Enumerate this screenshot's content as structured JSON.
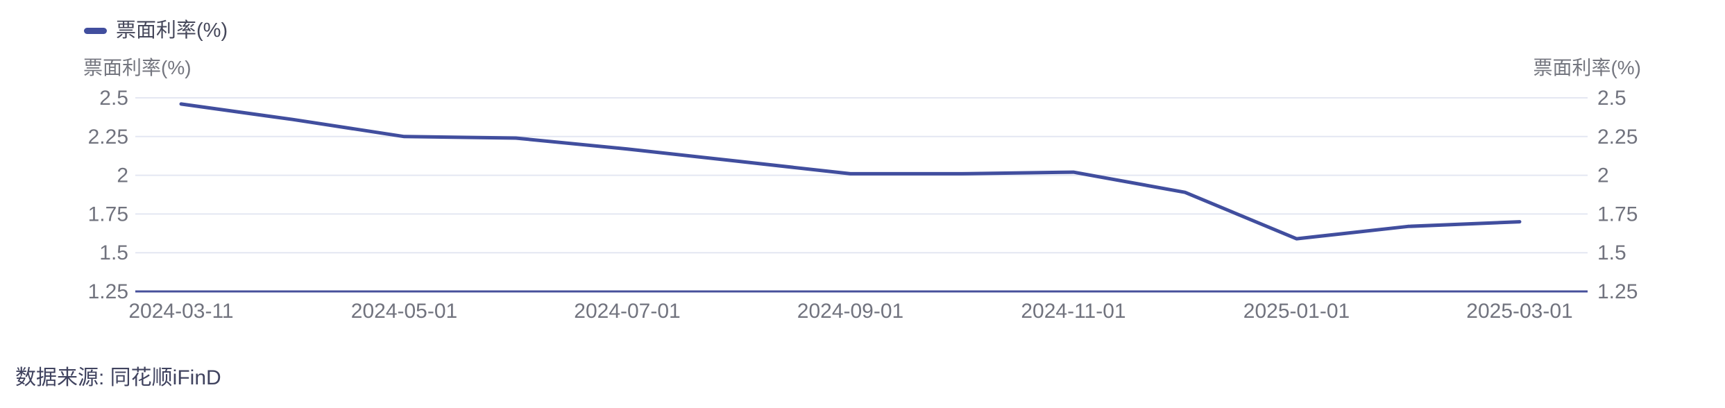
{
  "legend": {
    "label": "票面利率(%)"
  },
  "axis_titles": {
    "left": "票面利率(%)",
    "right": "票面利率(%)"
  },
  "source": {
    "text": "数据来源: 同花顺iFinD"
  },
  "chart_data": {
    "type": "line",
    "title": "",
    "legend": "票面利率(%)",
    "legend_position": "top-left",
    "grid": true,
    "categories": [
      "2024-03-11",
      "2024-04-01",
      "2024-05-01",
      "2024-06-01",
      "2024-07-01",
      "2024-08-01",
      "2024-09-01",
      "2024-10-01",
      "2024-11-01",
      "2024-12-01",
      "2025-01-01",
      "2025-02-01",
      "2025-03-01"
    ],
    "series": [
      {
        "name": "票面利率(%)",
        "values": [
          2.46,
          2.36,
          2.25,
          2.24,
          2.17,
          2.09,
          2.01,
          2.01,
          2.02,
          1.89,
          1.59,
          1.67,
          1.7
        ]
      }
    ],
    "xtick_labels": [
      "2024-03-11",
      "2024-05-01",
      "2024-07-01",
      "2024-09-01",
      "2024-11-01",
      "2025-01-01",
      "2025-03-01"
    ],
    "xtick_every": 2,
    "yticks": [
      "2.5",
      "2.25",
      "2",
      "1.75",
      "1.5",
      "1.25"
    ],
    "ylim": [
      1.25,
      2.5
    ],
    "ylabel_left": "票面利率(%)",
    "ylabel_right": "票面利率(%)",
    "colors": {
      "line": "#414E9E",
      "axis_line": "#47509B",
      "grid": "#E4E7F2",
      "tick_label": "#71737E",
      "axis_name": "#74767F",
      "legend_text": "#45475A",
      "source_text": "#40435F",
      "background": "#FFFFFF"
    }
  }
}
